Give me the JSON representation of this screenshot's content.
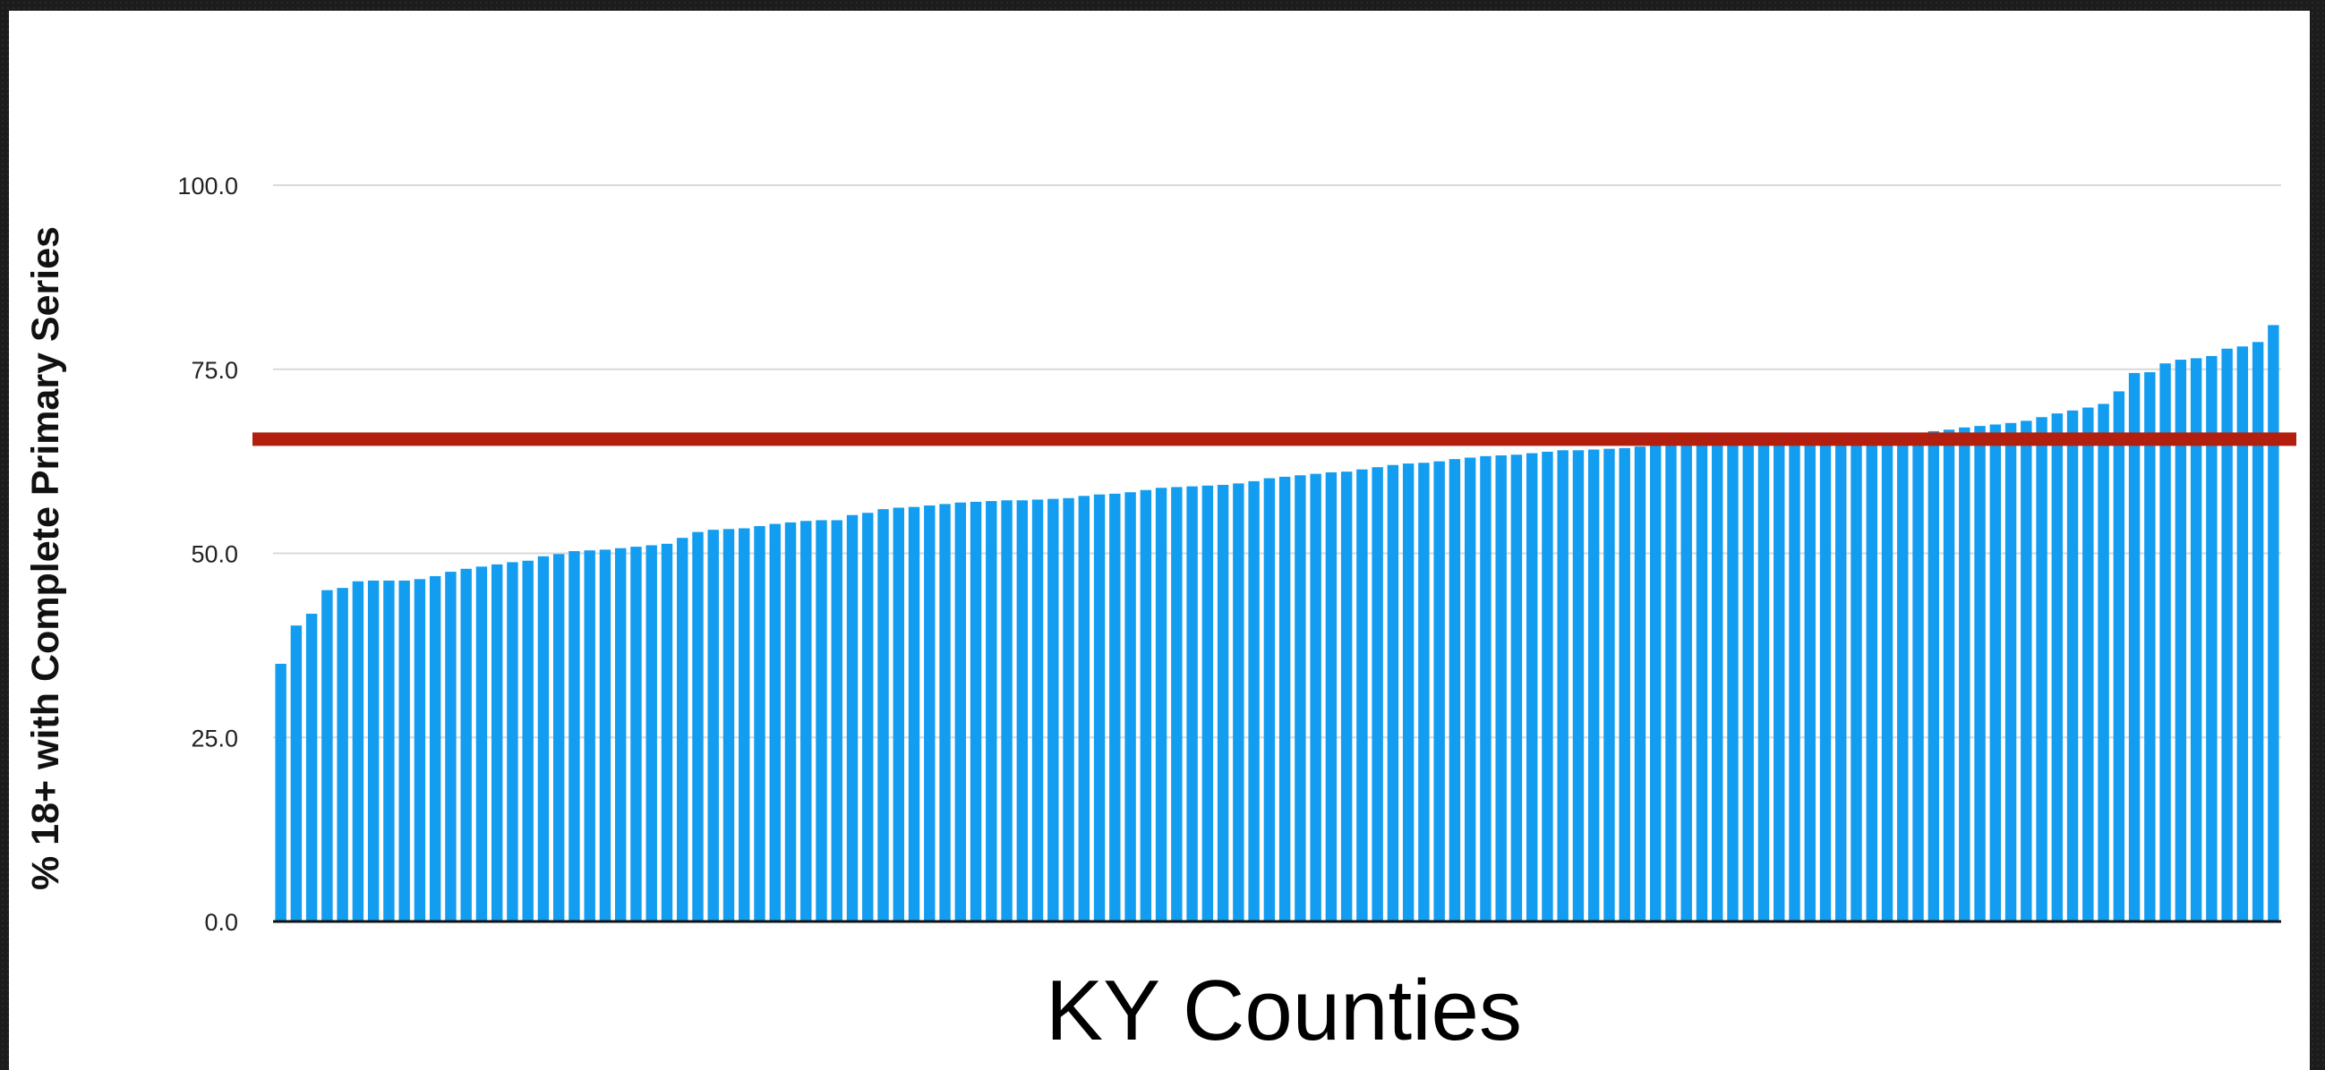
{
  "chart_data": {
    "type": "bar",
    "xlabel": "KY Counties",
    "ylabel": "% 18+ with Complete Primary Series",
    "ylim": [
      0,
      100
    ],
    "y_ticks": [
      "0.0",
      "25.0",
      "50.0",
      "75.0",
      "100.0"
    ],
    "grid": true,
    "bar_color": "#139DF0",
    "reference_line": {
      "value": 65.5,
      "color": "#B21F0F"
    },
    "values": [
      35.0,
      40.2,
      41.8,
      45.0,
      45.3,
      46.2,
      46.3,
      46.3,
      46.3,
      46.5,
      46.9,
      47.5,
      47.9,
      48.2,
      48.5,
      48.8,
      49.0,
      49.6,
      49.9,
      50.3,
      50.4,
      50.5,
      50.7,
      50.9,
      51.1,
      51.3,
      52.1,
      52.9,
      53.2,
      53.3,
      53.4,
      53.7,
      54.0,
      54.2,
      54.4,
      54.5,
      54.5,
      55.2,
      55.5,
      56.0,
      56.2,
      56.3,
      56.5,
      56.7,
      56.9,
      57.0,
      57.1,
      57.2,
      57.2,
      57.3,
      57.4,
      57.5,
      57.8,
      58.0,
      58.1,
      58.3,
      58.6,
      58.9,
      59.0,
      59.1,
      59.2,
      59.3,
      59.5,
      59.8,
      60.2,
      60.4,
      60.6,
      60.8,
      61.0,
      61.1,
      61.4,
      61.7,
      62.0,
      62.2,
      62.3,
      62.5,
      62.8,
      63.0,
      63.2,
      63.3,
      63.4,
      63.6,
      63.8,
      64.0,
      64.0,
      64.1,
      64.2,
      64.3,
      64.5,
      64.7,
      64.9,
      65.0,
      65.0,
      65.1,
      65.2,
      65.2,
      65.3,
      65.3,
      65.4,
      65.5,
      65.6,
      65.7,
      65.8,
      65.9,
      66.0,
      66.2,
      66.4,
      66.6,
      66.8,
      67.1,
      67.3,
      67.5,
      67.7,
      68.0,
      68.5,
      69.0,
      69.4,
      69.8,
      70.3,
      72.0,
      74.5,
      74.6,
      75.8,
      76.3,
      76.5,
      76.8,
      77.8,
      78.1,
      78.7,
      81.0
    ]
  }
}
